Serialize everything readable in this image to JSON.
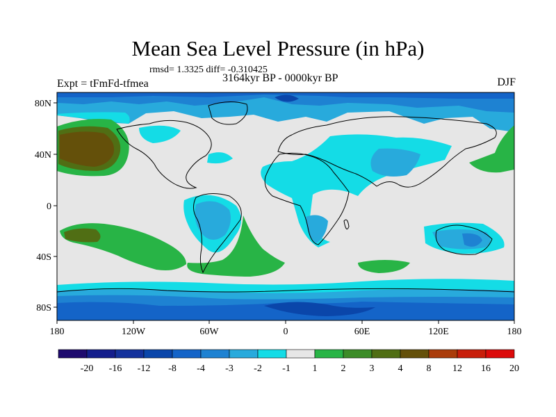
{
  "title": "Mean Sea Level Pressure (in hPa)",
  "stats": "rmsd= 1.3325 diff= -0.310425",
  "period": "3164kyr BP - 0000kyr BP",
  "experiment": "Expt = tFmFd-tfmea",
  "season": "DJF",
  "lat_labels": [
    "80N",
    "40N",
    "0",
    "40S",
    "80S"
  ],
  "lon_labels": [
    "180",
    "120W",
    "60W",
    "0",
    "60E",
    "120E",
    "180"
  ],
  "colorbar": {
    "labels": [
      "-20",
      "-16",
      "-12",
      "-8",
      "-4",
      "-3",
      "-2",
      "-1",
      "1",
      "2",
      "3",
      "4",
      "8",
      "12",
      "16",
      "20"
    ],
    "colors": [
      "#1e0a6e",
      "#141e8c",
      "#14329c",
      "#0a46aa",
      "#1464c8",
      "#1e82d2",
      "#28aadc",
      "#14dce6",
      "#e6e6e6",
      "#28b446",
      "#3c8c28",
      "#506e14",
      "#64500a",
      "#aa3c0a",
      "#c81e0a",
      "#dc0a0a"
    ]
  }
}
